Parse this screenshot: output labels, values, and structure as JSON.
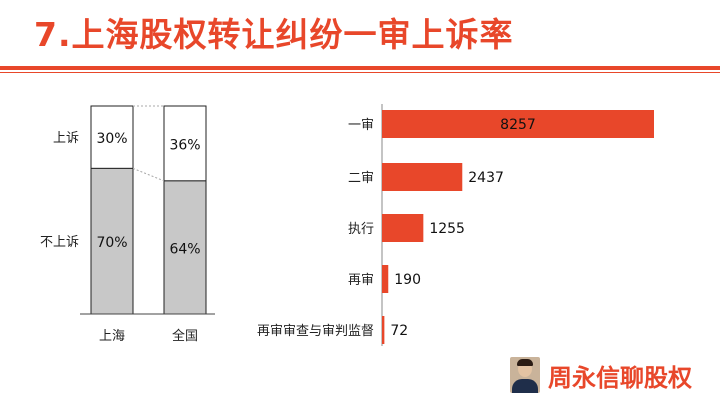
{
  "title": "7.上海股权转让纠纷一审上诉率",
  "brand": {
    "name": "周永信聊股权",
    "avatar_icon": "portrait-photo"
  },
  "colors": {
    "accent": "#e8472a",
    "grey_bar": "#c8c8c8",
    "white_bar": "#ffffff",
    "axis": "#888888"
  },
  "chart_data": [
    {
      "type": "bar",
      "stacked": true,
      "percent": true,
      "categories": [
        "上海",
        "全国"
      ],
      "series": [
        {
          "name": "上诉",
          "values": [
            30,
            36
          ],
          "labels": [
            "30%",
            "36%"
          ]
        },
        {
          "name": "不上诉",
          "values": [
            70,
            64
          ],
          "labels": [
            "70%",
            "64%"
          ]
        }
      ],
      "ylim": [
        0,
        100
      ],
      "legend": "left"
    },
    {
      "type": "bar",
      "orientation": "horizontal",
      "categories": [
        "一审",
        "二审",
        "执行",
        "再审",
        "再审审查与审判监督"
      ],
      "values": [
        8257,
        2437,
        1255,
        190,
        72
      ],
      "labels": [
        "8257",
        "2437",
        "1255",
        "190",
        "72"
      ],
      "xlim": [
        0,
        8257
      ]
    }
  ]
}
